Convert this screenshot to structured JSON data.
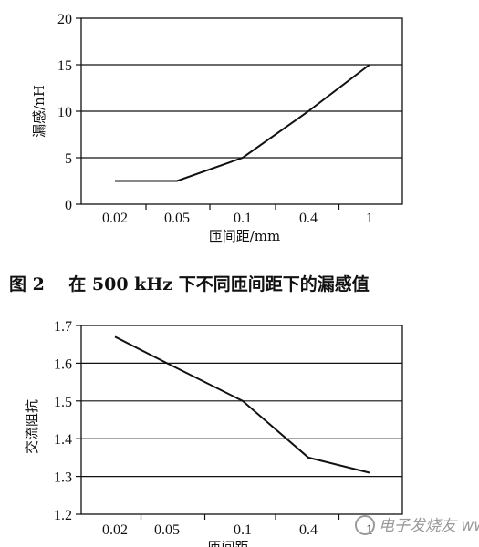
{
  "chart_data": [
    {
      "type": "line",
      "title": "",
      "xlabel": "匝间距/mm",
      "ylabel": "漏感/nH",
      "categories": [
        "0.02",
        "0.05",
        "0.1",
        "0.4",
        "1"
      ],
      "values": [
        2.5,
        2.5,
        5,
        10,
        15
      ],
      "yticks": [
        "0",
        "5",
        "10",
        "15",
        "20"
      ],
      "ylim": [
        0,
        20
      ],
      "grid": "horizontal"
    },
    {
      "type": "line",
      "title": "",
      "xlabel": "匝间距",
      "ylabel": "交流阻抗",
      "categories": [
        "0.02",
        "0.05",
        "0.1",
        "0.4",
        "1"
      ],
      "values": [
        1.67,
        1.6,
        1.5,
        1.35,
        1.31
      ],
      "yticks": [
        "1.2",
        "1.3",
        "1.4",
        "1.5",
        "1.6",
        "1.7"
      ],
      "ylim": [
        1.2,
        1.7
      ],
      "grid": "horizontal"
    }
  ],
  "caption": "图 2    在 500 kHz 下不同匝间距下的漏感值",
  "watermark": "电子发烧友 www.elecfans.com",
  "colors": {
    "line": "#111111",
    "grid": "#111111",
    "background": "#ffffff"
  }
}
